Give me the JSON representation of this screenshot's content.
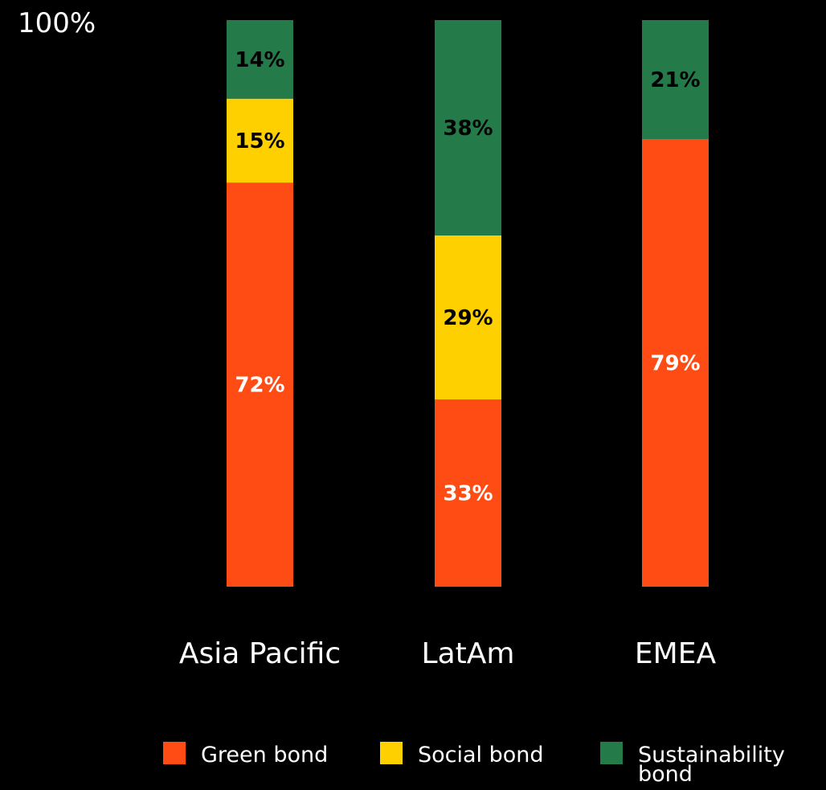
{
  "chart_data": {
    "type": "bar",
    "stacked": true,
    "y_top_label": "100%",
    "ylim": [
      0,
      100
    ],
    "grid": false,
    "legend_position": "bottom",
    "categories": [
      "Asia Pacific",
      "LatAm",
      "EMEA"
    ],
    "series": [
      {
        "name": "Green bond",
        "color": "#ff4c14",
        "label_color": "#ffffff",
        "values": [
          72,
          33,
          79
        ],
        "labels": [
          "72%",
          "33%",
          "79%"
        ]
      },
      {
        "name": "Social bond",
        "color": "#ffd000",
        "label_color": "#000000",
        "values": [
          15,
          29,
          0
        ],
        "labels": [
          "15%",
          "29%",
          ""
        ]
      },
      {
        "name": "Sustainability bond",
        "name_lines": [
          "Sustainability",
          "bond"
        ],
        "color": "#247a49",
        "label_color": "#000000",
        "values": [
          14,
          38,
          21
        ],
        "labels": [
          "14%",
          "38%",
          "21%"
        ]
      }
    ]
  }
}
